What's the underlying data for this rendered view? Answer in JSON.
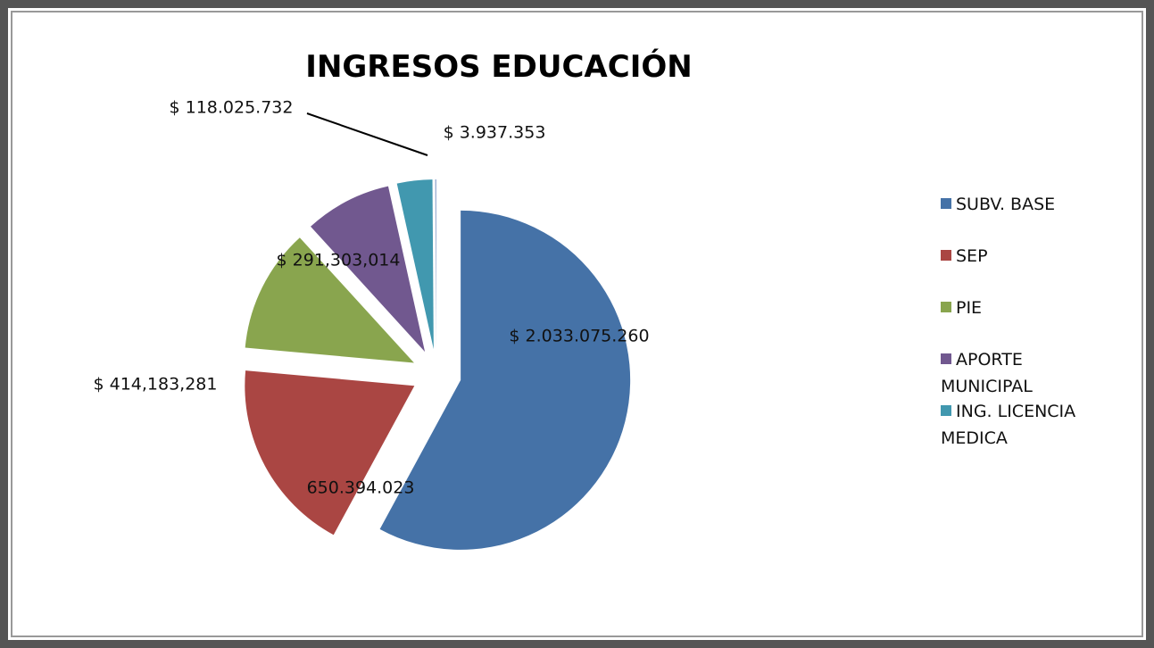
{
  "chart_data": {
    "type": "pie",
    "title": "INGRESOS EDUCACIÓN",
    "categories": [
      "SUBV. BASE",
      "SEP",
      "PIE",
      "APORTE MUNICIPAL",
      "ING. LICENCIA MEDICA",
      null
    ],
    "values": [
      2033075260,
      650394023,
      414183281,
      291303014,
      118025732,
      3937353
    ],
    "value_labels": [
      "$ 2.033.075.260",
      "650.394.023",
      "$ 414,183,281",
      "$ 291,303,014",
      "$ 118.025.732",
      "$ 3.937.353"
    ],
    "colors": [
      "#4572a7",
      "#aa4643",
      "#89a54e",
      "#71588f",
      "#4198af",
      "#93a9cf"
    ],
    "legend": "right"
  }
}
